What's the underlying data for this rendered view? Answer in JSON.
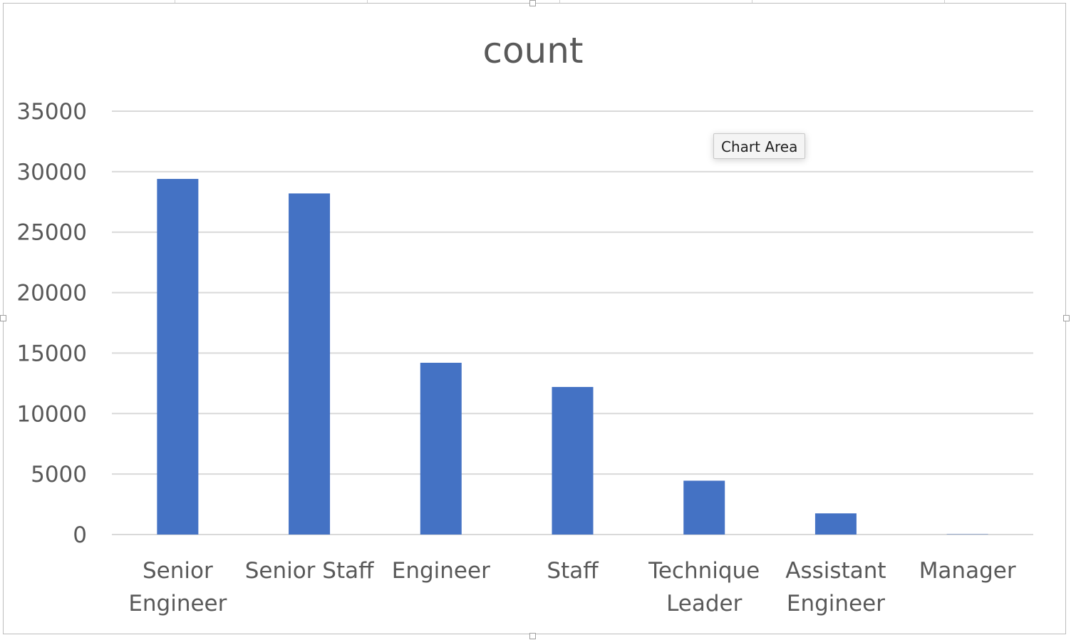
{
  "chart_data": {
    "type": "bar",
    "title": "count",
    "categories": [
      [
        "Senior",
        "Engineer"
      ],
      [
        "Senior Staff"
      ],
      [
        "Engineer"
      ],
      [
        "Staff"
      ],
      [
        "Technique",
        "Leader"
      ],
      [
        "Assistant",
        "Engineer"
      ],
      [
        "Manager"
      ]
    ],
    "values": [
      29400,
      28200,
      14200,
      12200,
      4450,
      1750,
      24
    ],
    "ylim": [
      0,
      35000
    ],
    "yticks": [
      "0",
      "5000",
      "10000",
      "15000",
      "20000",
      "25000",
      "30000",
      "35000"
    ],
    "grid": true,
    "legend": "none",
    "bar_color": "#4472C4",
    "gridline_color": "#d9d9d9"
  },
  "tooltip": {
    "text": "Chart Area"
  }
}
